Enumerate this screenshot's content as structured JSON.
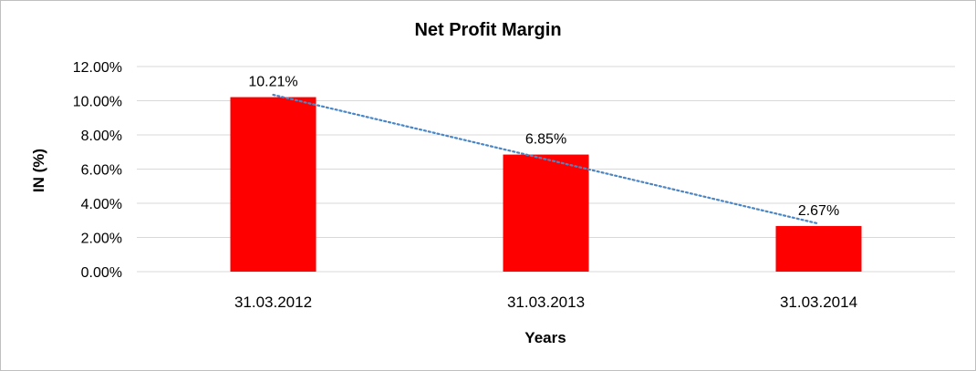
{
  "chart_data": {
    "type": "bar",
    "title": "Net Profit Margin",
    "xlabel": "Years",
    "ylabel": "IN (%)",
    "categories": [
      "31.03.2012",
      "31.03.2013",
      "31.03.2014"
    ],
    "values": [
      10.21,
      6.85,
      2.67
    ],
    "data_labels": [
      "10.21%",
      "6.85%",
      "2.67%"
    ],
    "ylim": [
      0,
      12
    ],
    "yticks": [
      0,
      2,
      4,
      6,
      8,
      10,
      12
    ],
    "ytick_labels": [
      "0.00%",
      "2.00%",
      "4.00%",
      "6.00%",
      "8.00%",
      "10.00%",
      "12.00%"
    ],
    "grid": true,
    "legend": "none",
    "trendline": {
      "type": "linear",
      "style": "dotted"
    },
    "colors": {
      "bar": "#ff0000",
      "trendline": "#4a86c5",
      "grid": "#d9d9d9"
    }
  }
}
